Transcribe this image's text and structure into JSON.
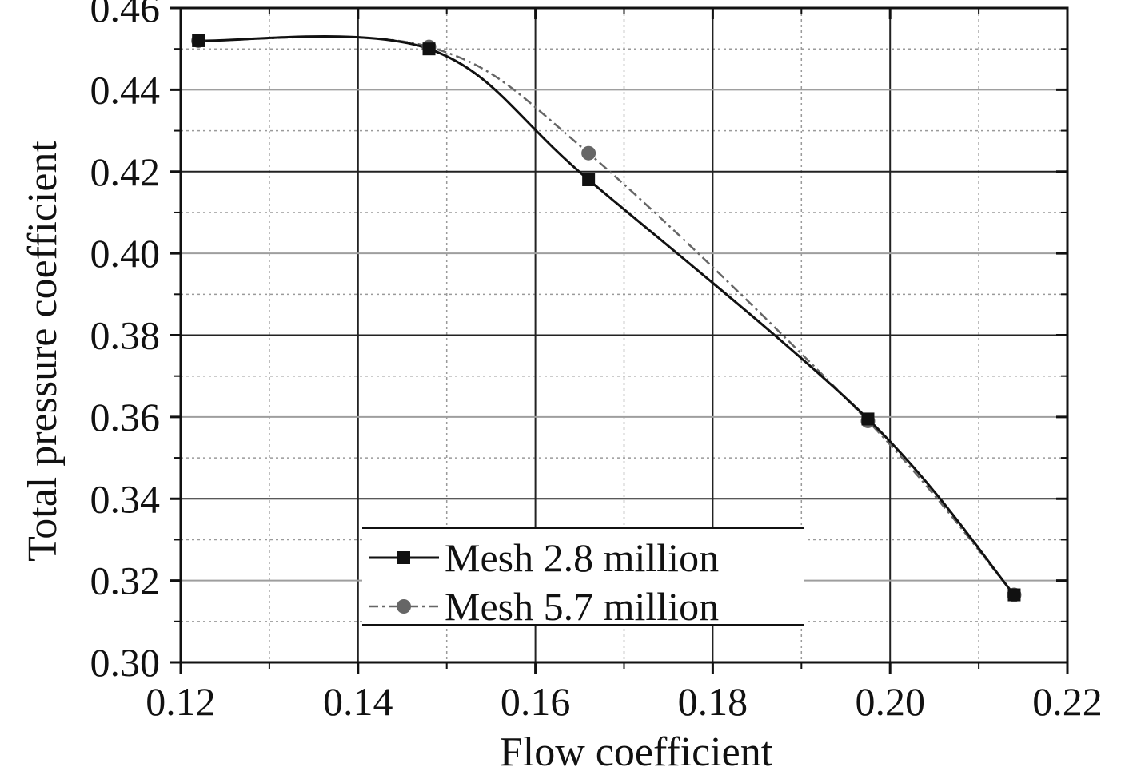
{
  "chart_data": {
    "type": "line",
    "title": "",
    "xlabel": "Flow coefficient",
    "ylabel": "Total pressure coefficient",
    "xlim": [
      0.12,
      0.22
    ],
    "ylim": [
      0.3,
      0.46
    ],
    "xticks": [
      0.12,
      0.14,
      0.16,
      0.18,
      0.2,
      0.22
    ],
    "yticks": [
      0.3,
      0.32,
      0.34,
      0.36,
      0.38,
      0.4,
      0.42,
      0.44,
      0.46
    ],
    "xtick_labels": [
      "0.12",
      "0.14",
      "0.16",
      "0.18",
      "0.20",
      "0.22"
    ],
    "ytick_labels": [
      "0.30",
      "0.32",
      "0.34",
      "0.36",
      "0.38",
      "0.40",
      "0.42",
      "0.44",
      "0.46"
    ],
    "grid": true,
    "legend_position": "bottom-center",
    "series": [
      {
        "name": "Mesh 2.8 million",
        "marker": "square",
        "line_style": "solid",
        "color": "#111111",
        "x": [
          0.122,
          0.148,
          0.166,
          0.1975,
          0.214
        ],
        "y": [
          0.452,
          0.45,
          0.418,
          0.3595,
          0.3165
        ]
      },
      {
        "name": "Mesh 5.7 million",
        "marker": "circle",
        "line_style": "dash-dot",
        "color": "#666666",
        "x": [
          0.122,
          0.148,
          0.166,
          0.1975,
          0.214
        ],
        "y": [
          0.452,
          0.4505,
          0.4245,
          0.359,
          0.3165
        ]
      }
    ]
  }
}
